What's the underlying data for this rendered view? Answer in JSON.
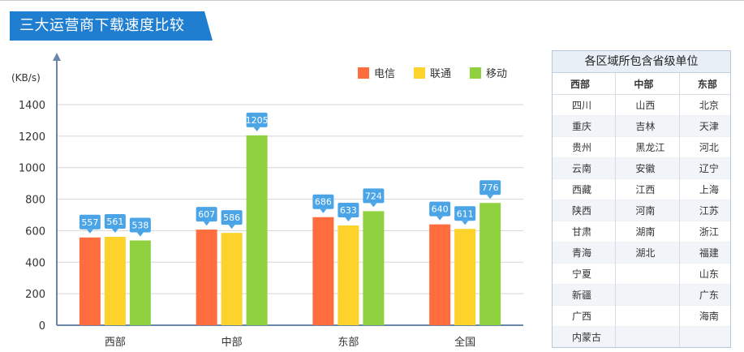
{
  "title": "三大运营商下载速度比较",
  "chart_data": {
    "type": "bar",
    "title": "三大运营商下载速度比较",
    "ylabel": "(KB/s)",
    "xlabel": "",
    "ylim": [
      0,
      1400
    ],
    "yticks": [
      0,
      200,
      400,
      600,
      800,
      1000,
      1200,
      1400
    ],
    "grid": true,
    "legend_position": "top-right",
    "categories": [
      "西部",
      "中部",
      "东部",
      "全国"
    ],
    "series": [
      {
        "name": "电信",
        "color": "#ff6c3e",
        "values": [
          557,
          607,
          686,
          640
        ]
      },
      {
        "name": "联通",
        "color": "#fdd22b",
        "values": [
          561,
          586,
          633,
          611
        ]
      },
      {
        "name": "移动",
        "color": "#8fd13f",
        "values": [
          538,
          1205,
          724,
          776
        ]
      }
    ],
    "label_color": "#4aa4e6"
  },
  "region_panel": {
    "title": "各区域所包含省级单位",
    "headers": [
      "西部",
      "中部",
      "东部"
    ],
    "rows": [
      [
        "四川",
        "山西",
        "北京"
      ],
      [
        "重庆",
        "吉林",
        "天津"
      ],
      [
        "贵州",
        "黑龙江",
        "河北"
      ],
      [
        "云南",
        "安徽",
        "辽宁"
      ],
      [
        "西藏",
        "江西",
        "上海"
      ],
      [
        "陕西",
        "河南",
        "江苏"
      ],
      [
        "甘肃",
        "湖南",
        "浙江"
      ],
      [
        "青海",
        "湖北",
        "福建"
      ],
      [
        "宁夏",
        "",
        "山东"
      ],
      [
        "新疆",
        "",
        "广东"
      ],
      [
        "广西",
        "",
        "海南"
      ],
      [
        "内蒙古",
        "",
        ""
      ]
    ]
  }
}
